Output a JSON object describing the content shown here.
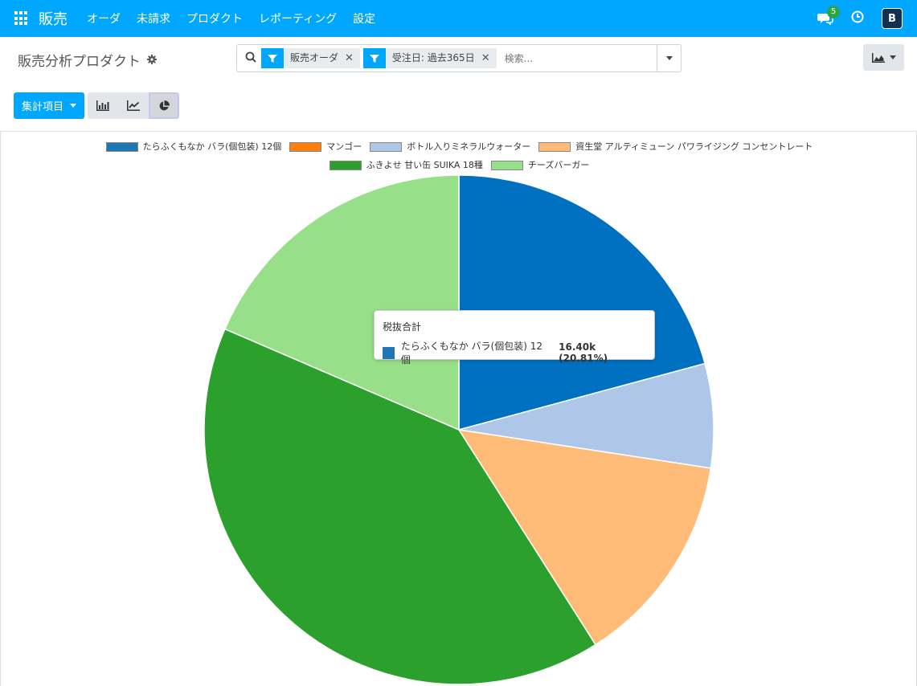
{
  "nav": {
    "app_name": "販売",
    "menu": [
      "オーダ",
      "未請求",
      "プロダクト",
      "レポーティング",
      "設定"
    ],
    "chat_badge": "5",
    "avatar_letter": "B"
  },
  "control": {
    "title": "販売分析プロダクト",
    "facets": [
      {
        "label": "販売オーダ"
      },
      {
        "label": "受注日: 過去365日"
      }
    ],
    "search_placeholder": "検索...",
    "measures_label": "集計項目"
  },
  "colors": {
    "brand": "#00a7ff",
    "badge": "#28a745"
  },
  "chart_data": {
    "type": "pie",
    "measure": "税抜合計",
    "series": [
      {
        "name": "たらふくもなか バラ(個包装) 12個",
        "value": 16400,
        "legend_color": "#1f77b4",
        "slice_color": "#0070c0"
      },
      {
        "name": "マンゴー",
        "value": 0,
        "legend_color": "#ff7f0e",
        "slice_color": "#ff7f0e"
      },
      {
        "name": "ボトル入りミネラルウォーター",
        "value": 5200,
        "legend_color": "#aec7e8",
        "slice_color": "#aec7e8"
      },
      {
        "name": "資生堂 アルティミューン パワライジング コンセントレート",
        "value": 10700,
        "legend_color": "#ffbb78",
        "slice_color": "#ffbb78"
      },
      {
        "name": "ふきよせ 甘い缶 SUIKA 18種",
        "value": 31900,
        "legend_color": "#2ca02c",
        "slice_color": "#2ca02c"
      },
      {
        "name": "チーズバーガー",
        "value": 14600,
        "legend_color": "#98df8a",
        "slice_color": "#98df8a"
      }
    ],
    "tooltip": {
      "title": "税抜合計",
      "label": "たらふくもなか バラ(個包装) 12個",
      "value": "16.40k (20.81%)"
    }
  }
}
